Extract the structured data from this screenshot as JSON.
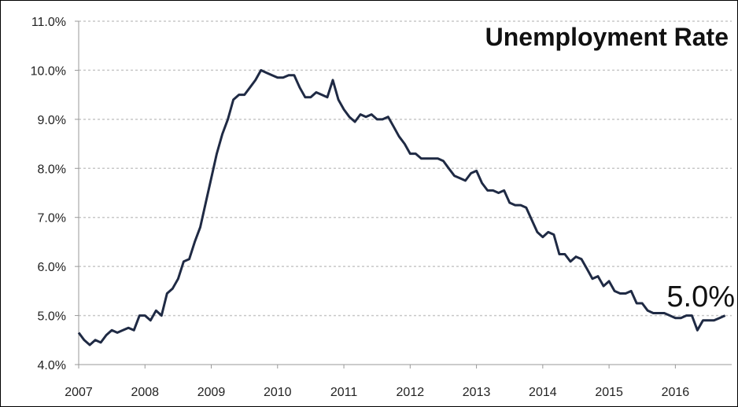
{
  "chart_data": {
    "type": "line",
    "title": "Unemployment Rate",
    "annotation": "5.0%",
    "xlabel": "",
    "ylabel": "",
    "xlim": [
      2007,
      2016.85
    ],
    "ylim": [
      4.0,
      11.0
    ],
    "x_ticks": [
      "2007",
      "2008",
      "2009",
      "2010",
      "2011",
      "2012",
      "2013",
      "2014",
      "2015",
      "2016"
    ],
    "y_ticks": [
      "4.0%",
      "5.0%",
      "6.0%",
      "7.0%",
      "8.0%",
      "9.0%",
      "10.0%",
      "11.0%"
    ],
    "grid": true,
    "line_color": "#1f2a44",
    "series": [
      {
        "name": "",
        "x": [
          2007.0,
          2007.083,
          2007.167,
          2007.25,
          2007.333,
          2007.417,
          2007.5,
          2007.583,
          2007.667,
          2007.75,
          2007.833,
          2007.917,
          2008.0,
          2008.083,
          2008.167,
          2008.25,
          2008.333,
          2008.417,
          2008.5,
          2008.583,
          2008.667,
          2008.75,
          2008.833,
          2008.917,
          2009.0,
          2009.083,
          2009.167,
          2009.25,
          2009.333,
          2009.417,
          2009.5,
          2009.583,
          2009.667,
          2009.75,
          2009.833,
          2009.917,
          2010.0,
          2010.083,
          2010.167,
          2010.25,
          2010.333,
          2010.417,
          2010.5,
          2010.583,
          2010.667,
          2010.75,
          2010.833,
          2010.917,
          2011.0,
          2011.083,
          2011.167,
          2011.25,
          2011.333,
          2011.417,
          2011.5,
          2011.583,
          2011.667,
          2011.75,
          2011.833,
          2011.917,
          2012.0,
          2012.083,
          2012.167,
          2012.25,
          2012.333,
          2012.417,
          2012.5,
          2012.583,
          2012.667,
          2012.75,
          2012.833,
          2012.917,
          2013.0,
          2013.083,
          2013.167,
          2013.25,
          2013.333,
          2013.417,
          2013.5,
          2013.583,
          2013.667,
          2013.75,
          2013.833,
          2013.917,
          2014.0,
          2014.083,
          2014.167,
          2014.25,
          2014.333,
          2014.417,
          2014.5,
          2014.583,
          2014.667,
          2014.75,
          2014.833,
          2014.917,
          2015.0,
          2015.083,
          2015.167,
          2015.25,
          2015.333,
          2015.417,
          2015.5,
          2015.583,
          2015.667,
          2015.75,
          2015.833,
          2015.917,
          2016.0,
          2016.083,
          2016.167,
          2016.25,
          2016.333,
          2016.417,
          2016.5,
          2016.583,
          2016.667,
          2016.75
        ],
        "values": [
          4.65,
          4.5,
          4.4,
          4.5,
          4.45,
          4.6,
          4.7,
          4.65,
          4.7,
          4.75,
          4.7,
          5.0,
          5.0,
          4.9,
          5.1,
          5.0,
          5.45,
          5.55,
          5.75,
          6.1,
          6.15,
          6.5,
          6.8,
          7.3,
          7.8,
          8.3,
          8.7,
          9.0,
          9.4,
          9.5,
          9.5,
          9.65,
          9.8,
          10.0,
          9.95,
          9.9,
          9.85,
          9.85,
          9.9,
          9.9,
          9.65,
          9.45,
          9.45,
          9.55,
          9.5,
          9.45,
          9.8,
          9.4,
          9.2,
          9.05,
          8.95,
          9.1,
          9.05,
          9.1,
          9.0,
          9.0,
          9.05,
          8.85,
          8.65,
          8.5,
          8.3,
          8.3,
          8.2,
          8.2,
          8.2,
          8.2,
          8.15,
          8.0,
          7.85,
          7.8,
          7.75,
          7.9,
          7.95,
          7.7,
          7.55,
          7.55,
          7.5,
          7.55,
          7.3,
          7.25,
          7.25,
          7.2,
          6.95,
          6.7,
          6.6,
          6.7,
          6.65,
          6.25,
          6.25,
          6.1,
          6.2,
          6.15,
          5.95,
          5.75,
          5.8,
          5.6,
          5.7,
          5.5,
          5.45,
          5.45,
          5.5,
          5.25,
          5.25,
          5.1,
          5.05,
          5.05,
          5.05,
          5.0,
          4.95,
          4.95,
          5.0,
          5.0,
          4.7,
          4.9,
          4.9,
          4.9,
          4.95,
          5.0
        ]
      }
    ]
  }
}
